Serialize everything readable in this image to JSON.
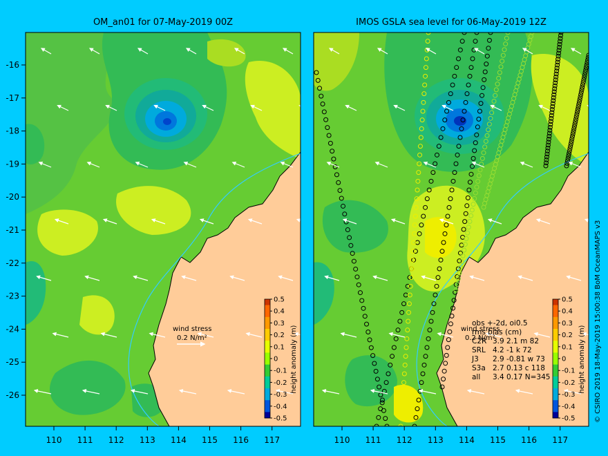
{
  "left_panel": {
    "title": "OM_an01 for 07-May-2019 00Z",
    "wind_label": "wind stress",
    "wind_value": "0.2 N/m²",
    "colorbar_label": "height anomaly (m)"
  },
  "right_panel": {
    "title": "IMOS GSLA sea level  for 06-May-2019 12Z",
    "wind_label": "wind stress",
    "wind_value": "0.2 N/m²",
    "colorbar_label": "height anomaly (m)",
    "stats_header": "obs +-2d, oi0.5",
    "stats_subheader": "rms bias (cm)",
    "stats": [
      {
        "sat": "C2R",
        "values": "3.9  2.1  m 82"
      },
      {
        "sat": "SRL",
        "values": "4.2  -1  k 72"
      },
      {
        "sat": "J3",
        "values": "2.9 -0.81  w 73"
      },
      {
        "sat": "S3a",
        "values": "2.7  0.13  c 118"
      },
      {
        "sat": "all",
        "values": "3.4  0.17  N=345"
      }
    ]
  },
  "colorbar_ticks": [
    "0.5",
    "0.4",
    "0.3",
    "0.2",
    "0.1",
    "0",
    "-0.1",
    "-0.2",
    "-0.3",
    "-0.4",
    "-0.5"
  ],
  "colorbar_colors": [
    "#cc3300",
    "#ff6600",
    "#ff9900",
    "#ffcc00",
    "#e6ff00",
    "#99ff00",
    "#33cc33",
    "#00cc99",
    "#00aadd",
    "#0055dd",
    "#000099"
  ],
  "x_ticks": [
    "110",
    "111",
    "112",
    "113",
    "114",
    "115",
    "116",
    "117"
  ],
  "y_ticks": [
    "-16",
    "-17",
    "-18",
    "-19",
    "-20",
    "-21",
    "-22",
    "-23",
    "-24",
    "-25",
    "-26"
  ],
  "credit": "© CSIRO 2019   18-May-2019 15:00:38 BoM OceanMAPS v3",
  "colors": {
    "background": "#00ccff",
    "land": "#ffcc99",
    "ocean_base": "#66cc33",
    "trough": "#0055dd",
    "coast": "#000000"
  }
}
